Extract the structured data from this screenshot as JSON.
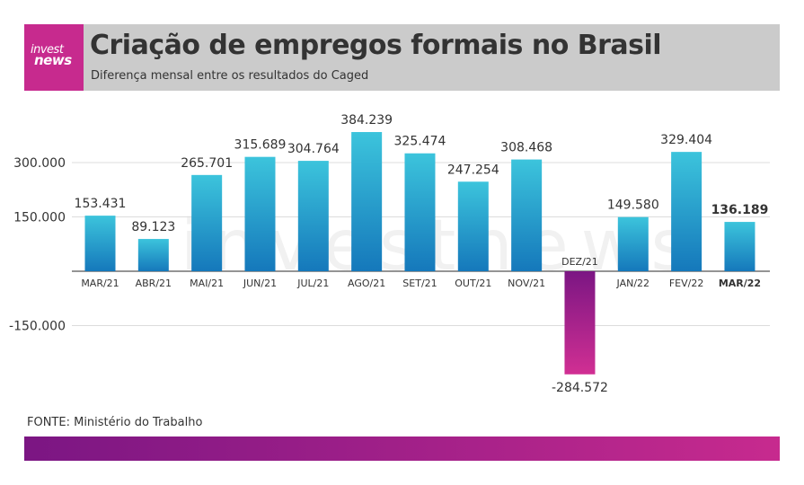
{
  "brand": {
    "logo_line1": "invest",
    "logo_line2": "news"
  },
  "header": {
    "title": "Criação de empregos formais no Brasil",
    "subtitle": "Diferença mensal entre os resultados do Caged"
  },
  "source": "FONTE: Ministério do Trabalho",
  "colors": {
    "positive_top": "#3cc4dc",
    "positive_bottom": "#1578bb",
    "negative_top": "#7b1683",
    "negative_bottom": "#d12f93",
    "watermark": "#f1f1f1"
  },
  "watermark": "investnews",
  "chart_data": {
    "type": "bar",
    "title": "Criação de empregos formais no Brasil",
    "subtitle": "Diferença mensal entre os resultados do Caged",
    "xlabel": "",
    "ylabel": "",
    "ylim": [
      -300000,
      400000
    ],
    "yticks": [
      -150000,
      150000,
      300000
    ],
    "ytick_labels": [
      "-150.000",
      "150.000",
      "300.000"
    ],
    "grid": true,
    "categories": [
      "MAR/21",
      "ABR/21",
      "MAI/21",
      "JUN/21",
      "JUL/21",
      "AGO/21",
      "SET/21",
      "OUT/21",
      "NOV/21",
      "DEZ/21",
      "JAN/22",
      "FEV/22",
      "MAR/22"
    ],
    "values": [
      153431,
      89123,
      265701,
      315689,
      304764,
      384239,
      325474,
      247254,
      308468,
      -284572,
      149580,
      329404,
      136189
    ],
    "value_labels": [
      "153.431",
      "89.123",
      "265.701",
      "315.689",
      "304.764",
      "384.239",
      "325.474",
      "247.254",
      "308.468",
      "-284.572",
      "149.580",
      "329.404",
      "136.189"
    ],
    "highlight": "MAR/22"
  }
}
